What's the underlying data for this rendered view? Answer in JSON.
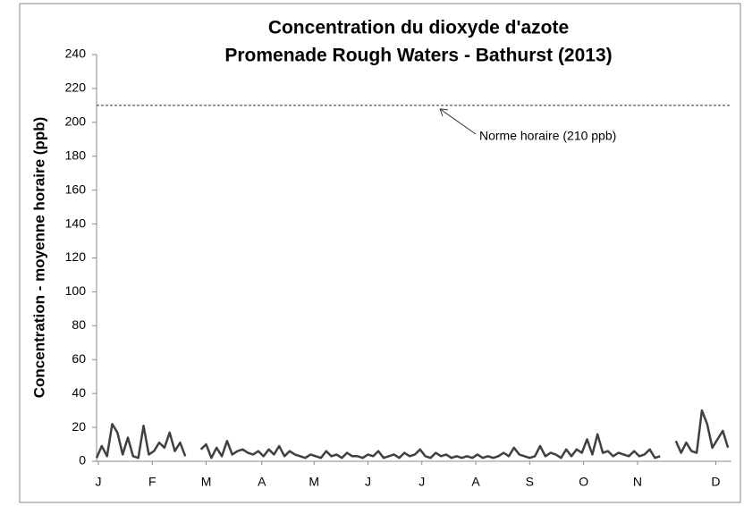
{
  "chart_data": {
    "type": "line",
    "title": [
      "Concentration du dioxyde d'azote",
      "Promenade Rough Waters - Bathurst (2013)"
    ],
    "ylabel": "Concentration - moyenne horaire (ppb)",
    "xlim": [
      0,
      365
    ],
    "xticks": [
      {
        "value": 1,
        "label": "J"
      },
      {
        "value": 32,
        "label": "F"
      },
      {
        "value": 63,
        "label": "M"
      },
      {
        "value": 95,
        "label": "A"
      },
      {
        "value": 125,
        "label": "M"
      },
      {
        "value": 156,
        "label": "J"
      },
      {
        "value": 187,
        "label": "J"
      },
      {
        "value": 218,
        "label": "A"
      },
      {
        "value": 249,
        "label": "S"
      },
      {
        "value": 280,
        "label": "O"
      },
      {
        "value": 311,
        "label": "N"
      },
      {
        "value": 356,
        "label": "D"
      }
    ],
    "ylim": [
      0,
      240
    ],
    "yticks": [
      0,
      20,
      40,
      60,
      80,
      100,
      120,
      140,
      160,
      180,
      200,
      220,
      240
    ],
    "reference": {
      "value": 210,
      "label": "Norme horaire (210 ppb)"
    },
    "color": "#404040",
    "x": [
      0,
      3,
      6,
      9,
      12,
      15,
      18,
      21,
      24,
      27,
      30,
      33,
      36,
      39,
      42,
      45,
      48,
      51,
      54,
      57,
      60,
      63,
      66,
      69,
      72,
      75,
      78,
      81,
      84,
      87,
      90,
      93,
      96,
      99,
      102,
      105,
      108,
      111,
      114,
      117,
      120,
      123,
      126,
      129,
      132,
      135,
      138,
      141,
      144,
      147,
      150,
      153,
      156,
      159,
      162,
      165,
      168,
      171,
      174,
      177,
      180,
      183,
      186,
      189,
      192,
      195,
      198,
      201,
      204,
      207,
      210,
      213,
      216,
      219,
      222,
      225,
      228,
      231,
      234,
      237,
      240,
      243,
      246,
      249,
      252,
      255,
      258,
      261,
      264,
      267,
      270,
      273,
      276,
      279,
      282,
      285,
      288,
      291,
      294,
      297,
      300,
      303,
      306,
      309,
      312,
      315,
      318,
      321,
      324,
      327,
      330,
      333,
      336,
      339,
      342,
      345,
      348,
      351,
      354,
      357,
      360,
      363
    ],
    "values": [
      2,
      9,
      3,
      22,
      17,
      4,
      14,
      3,
      2,
      21,
      4,
      6,
      11,
      8,
      17,
      6,
      11,
      3,
      null,
      null,
      7,
      10,
      2,
      8,
      3,
      12,
      4,
      6,
      7,
      5,
      4,
      6,
      3,
      7,
      4,
      9,
      3,
      6,
      4,
      3,
      2,
      4,
      3,
      2,
      6,
      3,
      4,
      2,
      5,
      3,
      3,
      2,
      4,
      3,
      6,
      2,
      3,
      4,
      2,
      5,
      3,
      4,
      7,
      3,
      2,
      5,
      3,
      4,
      2,
      3,
      2,
      3,
      2,
      4,
      2,
      3,
      2,
      3,
      5,
      3,
      8,
      4,
      3,
      2,
      3,
      9,
      3,
      5,
      4,
      2,
      7,
      3,
      7,
      5,
      13,
      4,
      16,
      5,
      6,
      3,
      5,
      4,
      3,
      6,
      3,
      4,
      7,
      2,
      3,
      null,
      null,
      12,
      5,
      11,
      6,
      5,
      30,
      22,
      8,
      13,
      18,
      8
    ]
  }
}
